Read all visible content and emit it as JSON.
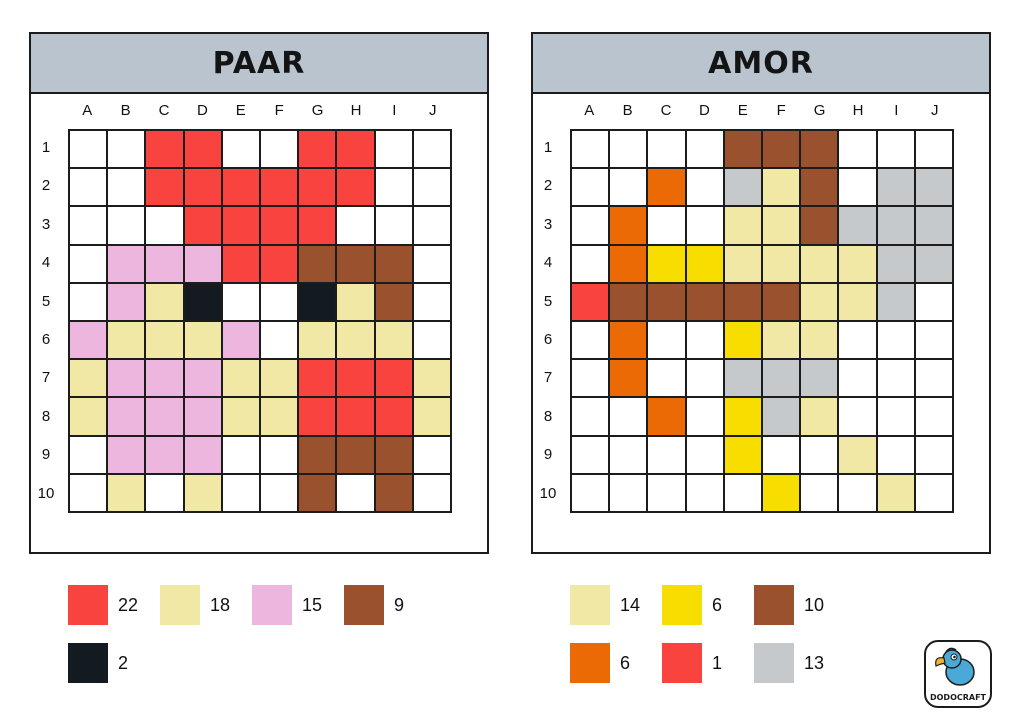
{
  "colors": {
    "R": "#f8433f",
    "Y": "#f0e8a4",
    "P": "#ecb6df",
    "B": "#9a522e",
    "K": "#131a20",
    "G": "#f7dd00",
    "O": "#ec6a05",
    "S": "#c5c9cb",
    "W": "#ffffff"
  },
  "columns": [
    "A",
    "B",
    "C",
    "D",
    "E",
    "F",
    "G",
    "H",
    "I",
    "J"
  ],
  "rows": [
    "1",
    "2",
    "3",
    "4",
    "5",
    "6",
    "7",
    "8",
    "9",
    "10"
  ],
  "puzzles": [
    {
      "title": "PAAR",
      "grid": [
        [
          "W",
          "W",
          "R",
          "R",
          "W",
          "W",
          "R",
          "R",
          "W",
          "W"
        ],
        [
          "W",
          "W",
          "R",
          "R",
          "R",
          "R",
          "R",
          "R",
          "W",
          "W"
        ],
        [
          "W",
          "W",
          "W",
          "R",
          "R",
          "R",
          "R",
          "W",
          "W",
          "W"
        ],
        [
          "W",
          "P",
          "P",
          "P",
          "R",
          "R",
          "B",
          "B",
          "B",
          "W"
        ],
        [
          "W",
          "P",
          "Y",
          "K",
          "W",
          "W",
          "K",
          "Y",
          "B",
          "W"
        ],
        [
          "P",
          "Y",
          "Y",
          "Y",
          "P",
          "W",
          "Y",
          "Y",
          "Y",
          "W"
        ],
        [
          "Y",
          "P",
          "P",
          "P",
          "Y",
          "Y",
          "R",
          "R",
          "R",
          "Y"
        ],
        [
          "Y",
          "P",
          "P",
          "P",
          "Y",
          "Y",
          "R",
          "R",
          "R",
          "Y"
        ],
        [
          "W",
          "P",
          "P",
          "P",
          "W",
          "W",
          "B",
          "B",
          "B",
          "W"
        ],
        [
          "W",
          "Y",
          "W",
          "Y",
          "W",
          "W",
          "B",
          "W",
          "B",
          "W"
        ]
      ],
      "legend": [
        {
          "color": "R",
          "count": "22"
        },
        {
          "color": "Y",
          "count": "18"
        },
        {
          "color": "P",
          "count": "15"
        },
        {
          "color": "B",
          "count": "9"
        },
        {
          "color": "K",
          "count": "2"
        }
      ]
    },
    {
      "title": "AMOR",
      "grid": [
        [
          "W",
          "W",
          "W",
          "W",
          "B",
          "B",
          "B",
          "W",
          "W",
          "W"
        ],
        [
          "W",
          "W",
          "O",
          "W",
          "S",
          "Y",
          "B",
          "W",
          "S",
          "S"
        ],
        [
          "W",
          "O",
          "W",
          "W",
          "Y",
          "Y",
          "B",
          "S",
          "S",
          "S"
        ],
        [
          "W",
          "O",
          "G",
          "G",
          "Y",
          "Y",
          "Y",
          "Y",
          "S",
          "S"
        ],
        [
          "R",
          "B",
          "B",
          "B",
          "B",
          "B",
          "Y",
          "Y",
          "S",
          "W"
        ],
        [
          "W",
          "O",
          "W",
          "W",
          "G",
          "Y",
          "Y",
          "W",
          "W",
          "W"
        ],
        [
          "W",
          "O",
          "W",
          "W",
          "S",
          "S",
          "S",
          "W",
          "W",
          "W"
        ],
        [
          "W",
          "W",
          "O",
          "W",
          "G",
          "S",
          "Y",
          "W",
          "W",
          "W"
        ],
        [
          "W",
          "W",
          "W",
          "W",
          "G",
          "W",
          "W",
          "Y",
          "W",
          "W"
        ],
        [
          "W",
          "W",
          "W",
          "W",
          "W",
          "G",
          "W",
          "W",
          "Y",
          "W"
        ]
      ],
      "legend": [
        {
          "color": "Y",
          "count": "14"
        },
        {
          "color": "G",
          "count": "6"
        },
        {
          "color": "B",
          "count": "10"
        },
        {
          "color": "O",
          "count": "6"
        },
        {
          "color": "R",
          "count": "1"
        },
        {
          "color": "S",
          "count": "13"
        }
      ]
    }
  ],
  "logo": {
    "text": "DODOCRAFT"
  }
}
